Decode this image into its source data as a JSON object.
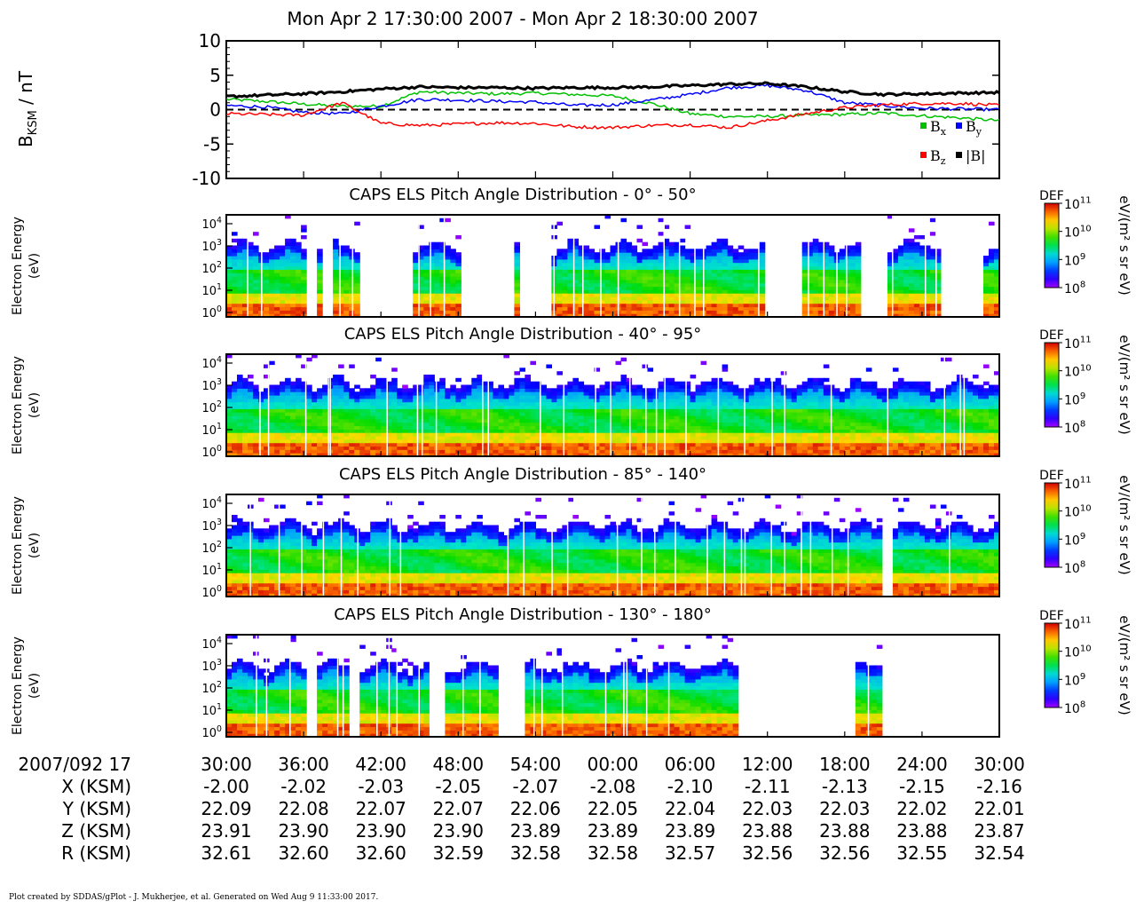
{
  "title": "Mon Apr 2 17:30:00 2007 - Mon Apr 2 18:30:00 2007",
  "footer": "Plot created by SDDAS/gPlot - J. Mukherjee, et al.  Generated on Wed Aug 9 11:33:00 2017.",
  "chart_data": [
    {
      "type": "line",
      "ylabel": "BKSM / nT",
      "ylim": [
        -10,
        10
      ],
      "yticks": [
        "10",
        "5",
        "0",
        "-5",
        "-10"
      ],
      "zero_line": "dashed",
      "legend": [
        "Bx",
        "By",
        "Bz",
        "|B|"
      ],
      "x": [
        0,
        3,
        6,
        9,
        12,
        15,
        18,
        21,
        24,
        27,
        30,
        33,
        36,
        39,
        42,
        45,
        48,
        51,
        54,
        57,
        60
      ],
      "series": [
        {
          "name": "Bx",
          "color": "#00c000",
          "values": [
            1.5,
            1.2,
            0.8,
            0.5,
            0.5,
            2.6,
            2.4,
            2.3,
            2.4,
            2.2,
            2.0,
            0.9,
            -0.6,
            -1.0,
            -1.0,
            -0.8,
            -0.7,
            -0.5,
            -0.9,
            -1.2,
            -1.6
          ]
        },
        {
          "name": "By",
          "color": "#0000ff",
          "values": [
            0.6,
            0.4,
            -0.4,
            -0.6,
            0.5,
            1.5,
            1.4,
            1.2,
            1.1,
            0.6,
            0.7,
            1.4,
            2.2,
            3.2,
            3.5,
            2.8,
            1.0,
            0.6,
            0.2,
            0.1,
            0.0
          ]
        },
        {
          "name": "Bz",
          "color": "#ff0000",
          "values": [
            -0.6,
            -0.7,
            -0.8,
            1.0,
            -2.0,
            -2.3,
            -2.1,
            -1.9,
            -2.0,
            -2.5,
            -2.6,
            -2.3,
            -2.2,
            -2.6,
            -1.6,
            -0.6,
            0.3,
            0.7,
            0.9,
            0.9,
            0.6
          ]
        },
        {
          "name": "|B|",
          "color": "#000000",
          "values": [
            1.9,
            2.1,
            2.3,
            2.6,
            3.0,
            3.3,
            3.2,
            3.2,
            3.1,
            3.2,
            3.2,
            3.3,
            3.5,
            3.7,
            3.8,
            3.3,
            2.6,
            2.2,
            2.3,
            2.4,
            2.5
          ]
        }
      ]
    },
    {
      "type": "heatmap",
      "title": "CAPS ELS Pitch Angle Distribution - 0° - 50°",
      "ylabel": "Electron Energy",
      "yunit": "(eV)",
      "ylim_log10": [
        -0.2,
        4.4
      ],
      "yticks": [
        "10",
        "10",
        "10",
        "10",
        "10"
      ],
      "yticks_exp": [
        "4",
        "3",
        "2",
        "1",
        "0"
      ],
      "colorbar": {
        "label": "DEF",
        "unit": "eV/(m² s sr eV)",
        "ticks": [
          "10",
          "10",
          "10",
          "10"
        ],
        "ticks_exp": [
          "11",
          "10",
          "9",
          "8"
        ]
      },
      "data_segments_min": [
        [
          0,
          6.5
        ],
        [
          7,
          7.4
        ],
        [
          8.2,
          10.5
        ],
        [
          14.5,
          18.5
        ],
        [
          21.2,
          21.7
        ],
        [
          22.1,
          23.1
        ],
        [
          25,
          42
        ],
        [
          44.5,
          49.5
        ],
        [
          51.3,
          55.5
        ],
        [
          58.4,
          60
        ]
      ],
      "upper_energy_log10": 3.0
    },
    {
      "type": "heatmap",
      "title": "CAPS ELS Pitch Angle Distribution - 40° - 95°",
      "ylabel": "Electron Energy",
      "yunit": "(eV)",
      "ylim_log10": [
        -0.2,
        4.4
      ],
      "yticks": [
        "10",
        "10",
        "10",
        "10",
        "10"
      ],
      "yticks_exp": [
        "4",
        "3",
        "2",
        "1",
        "0"
      ],
      "colorbar": {
        "label": "DEF",
        "unit": "eV/(m² s sr eV)",
        "ticks": [
          "10",
          "10",
          "10",
          "10"
        ],
        "ticks_exp": [
          "11",
          "10",
          "9",
          "8"
        ]
      },
      "data_segments_min": [
        [
          0,
          60
        ]
      ],
      "upper_energy_log10": 3.1
    },
    {
      "type": "heatmap",
      "title": "CAPS ELS Pitch Angle Distribution - 85° - 140°",
      "ylabel": "Electron Energy",
      "yunit": "(eV)",
      "ylim_log10": [
        -0.2,
        4.4
      ],
      "yticks": [
        "10",
        "10",
        "10",
        "10",
        "10"
      ],
      "yticks_exp": [
        "4",
        "3",
        "2",
        "1",
        "0"
      ],
      "colorbar": {
        "label": "DEF",
        "unit": "eV/(m² s sr eV)",
        "ticks": [
          "10",
          "10",
          "10",
          "10"
        ],
        "ticks_exp": [
          "11",
          "10",
          "9",
          "8"
        ]
      },
      "data_segments_min": [
        [
          0,
          51.1
        ],
        [
          51.6,
          60
        ]
      ],
      "upper_energy_log10": 3.0
    },
    {
      "type": "heatmap",
      "title": "CAPS ELS Pitch Angle Distribution - 130° - 180°",
      "ylabel": "Electron Energy",
      "yunit": "(eV)",
      "ylim_log10": [
        -0.2,
        4.4
      ],
      "yticks": [
        "10",
        "10",
        "10",
        "10",
        "10"
      ],
      "yticks_exp": [
        "4",
        "3",
        "2",
        "1",
        "0"
      ],
      "colorbar": {
        "label": "DEF",
        "unit": "eV/(m² s sr eV)",
        "ticks": [
          "10",
          "10",
          "10",
          "10"
        ],
        "ticks_exp": [
          "11",
          "10",
          "9",
          "8"
        ]
      },
      "data_segments_min": [
        [
          0,
          6.2
        ],
        [
          7,
          9.6
        ],
        [
          10.1,
          15.7
        ],
        [
          17,
          21.4
        ],
        [
          23.2,
          40
        ],
        [
          48.8,
          50.9
        ]
      ],
      "upper_energy_log10": 3.0
    }
  ],
  "x_axis": {
    "first_label": "2007/092 17",
    "ticks": [
      "30:00",
      "36:00",
      "42:00",
      "48:00",
      "54:00",
      "00:00",
      "06:00",
      "12:00",
      "18:00",
      "24:00",
      "30:00"
    ],
    "rows": [
      {
        "label": "X (KSM)",
        "values": [
          "-2.00",
          "-2.02",
          "-2.03",
          "-2.05",
          "-2.07",
          "-2.08",
          "-2.10",
          "-2.11",
          "-2.13",
          "-2.15",
          "-2.16"
        ]
      },
      {
        "label": "Y (KSM)",
        "values": [
          "22.09",
          "22.08",
          "22.07",
          "22.07",
          "22.06",
          "22.05",
          "22.04",
          "22.03",
          "22.03",
          "22.02",
          "22.01"
        ]
      },
      {
        "label": "Z (KSM)",
        "values": [
          "23.91",
          "23.90",
          "23.90",
          "23.90",
          "23.89",
          "23.89",
          "23.89",
          "23.88",
          "23.88",
          "23.88",
          "23.87"
        ]
      },
      {
        "label": "R (KSM)",
        "values": [
          "32.61",
          "32.60",
          "32.60",
          "32.59",
          "32.58",
          "32.58",
          "32.57",
          "32.56",
          "32.56",
          "32.55",
          "32.54"
        ]
      }
    ]
  }
}
